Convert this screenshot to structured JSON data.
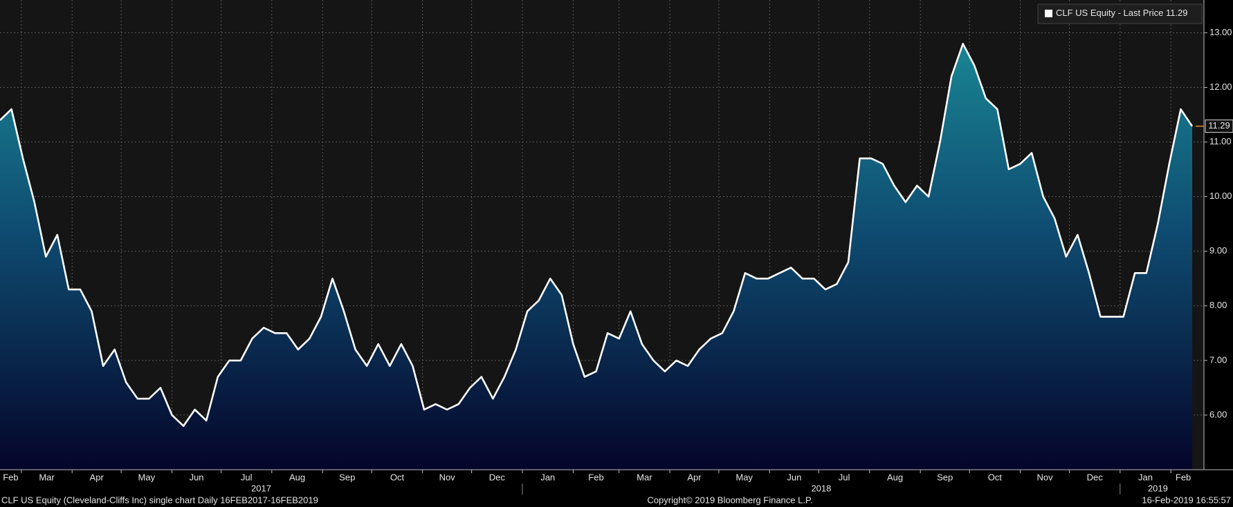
{
  "chart_data": {
    "type": "area",
    "series": [
      {
        "name": "CLF US Equity - Last Price",
        "color": "#ffffff",
        "values": [
          11.4,
          11.6,
          10.7,
          9.9,
          8.9,
          9.3,
          8.3,
          8.3,
          7.9,
          6.9,
          7.2,
          6.6,
          6.3,
          6.3,
          6.5,
          6.0,
          5.8,
          6.1,
          5.9,
          6.7,
          7.0,
          7.0,
          7.4,
          7.6,
          7.5,
          7.5,
          7.2,
          7.4,
          7.8,
          8.5,
          7.9,
          7.2,
          6.9,
          7.3,
          6.9,
          7.3,
          6.9,
          6.1,
          6.2,
          6.1,
          6.2,
          6.5,
          6.7,
          6.3,
          6.7,
          7.2,
          7.9,
          8.1,
          8.5,
          8.2,
          7.3,
          6.7,
          6.8,
          7.5,
          7.4,
          7.9,
          7.3,
          7.0,
          6.8,
          7.0,
          6.9,
          7.2,
          7.4,
          7.5,
          7.9,
          8.6,
          8.5,
          8.5,
          8.6,
          8.7,
          8.5,
          8.5,
          8.3,
          8.4,
          8.8,
          10.7,
          10.7,
          10.6,
          10.2,
          9.9,
          10.2,
          10.0,
          11.0,
          12.2,
          12.8,
          12.4,
          11.8,
          11.6,
          10.5,
          10.6,
          10.8,
          10.0,
          9.6,
          8.9,
          9.3,
          8.6,
          7.8,
          7.8,
          7.8,
          8.6,
          8.6,
          9.5,
          10.6,
          11.6,
          11.29
        ]
      }
    ],
    "last_price": 11.29,
    "xlim": [
      0,
      104.3
    ],
    "xticks": [
      {
        "value": -2.14,
        "label": "Feb"
      },
      {
        "value": 1.86,
        "label": "Mar"
      },
      {
        "value": 6.29,
        "label": "Apr"
      },
      {
        "value": 10.57,
        "label": "May"
      },
      {
        "value": 15,
        "label": "Jun"
      },
      {
        "value": 19.29,
        "label": "Jul"
      },
      {
        "value": 23.71,
        "label": "Aug"
      },
      {
        "value": 28.14,
        "label": "Sep"
      },
      {
        "value": 32.43,
        "label": "Oct"
      },
      {
        "value": 36.86,
        "label": "Nov"
      },
      {
        "value": 41.14,
        "label": "Dec"
      },
      {
        "value": 45.57,
        "label": "Jan"
      },
      {
        "value": 50,
        "label": "Feb"
      },
      {
        "value": 54,
        "label": "Mar"
      },
      {
        "value": 58.43,
        "label": "Apr"
      },
      {
        "value": 62.71,
        "label": "May"
      },
      {
        "value": 67.14,
        "label": "Jun"
      },
      {
        "value": 71.43,
        "label": "Jul"
      },
      {
        "value": 75.86,
        "label": "Aug"
      },
      {
        "value": 80.29,
        "label": "Sep"
      },
      {
        "value": 84.57,
        "label": "Oct"
      },
      {
        "value": 89,
        "label": "Nov"
      },
      {
        "value": 93.29,
        "label": "Dec"
      },
      {
        "value": 97.71,
        "label": "Jan"
      },
      {
        "value": 102.14,
        "label": "Feb"
      }
    ],
    "years": [
      {
        "value": -6.57,
        "label": "2017"
      },
      {
        "value": 45.57,
        "label": "2018"
      },
      {
        "value": 97.71,
        "label": "2019"
      }
    ],
    "ylim": [
      5,
      13.6
    ],
    "yticks": [
      {
        "value": 6,
        "label": "6.00"
      },
      {
        "value": 7,
        "label": "7.00"
      },
      {
        "value": 8,
        "label": "8.00"
      },
      {
        "value": 9,
        "label": "9.00"
      },
      {
        "value": 10,
        "label": "10.00"
      },
      {
        "value": 11,
        "label": "11.00"
      },
      {
        "value": 12,
        "label": "12.00"
      },
      {
        "value": 13,
        "label": "13.00"
      }
    ],
    "grid": true,
    "footer_left": "CLF US Equity (Cleveland-Cliffs Inc) single chart  Daily 16FEB2017-16FEB2019",
    "footer_center": "Copyright© 2019 Bloomberg Finance L.P.",
    "footer_right": "16-Feb-2019 16:55:57"
  }
}
